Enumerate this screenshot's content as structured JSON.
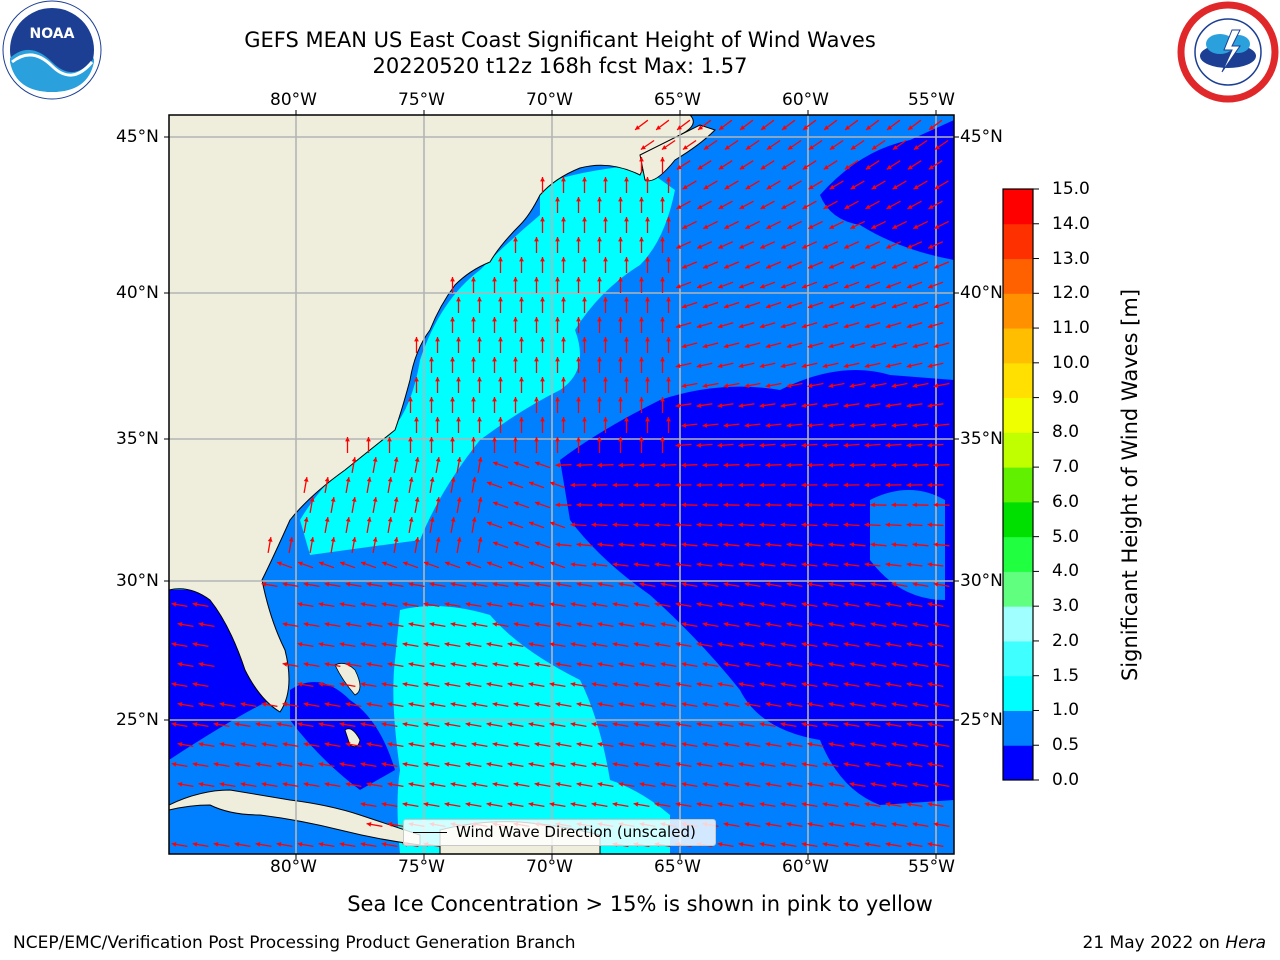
{
  "header": {
    "title_line1": "GEFS MEAN US East Coast Significant Height of Wind Waves",
    "title_line2": "20220520 t12z 168h fcst   Max: 1.57",
    "left_logo": {
      "icon": "noaa-logo",
      "text": "NOAA"
    },
    "right_logo": {
      "icon": "nws-logo"
    }
  },
  "map": {
    "lon_labels": [
      "80°W",
      "75°W",
      "70°W",
      "65°W",
      "60°W",
      "55°W"
    ],
    "lat_labels": [
      "45°N",
      "40°N",
      "35°N",
      "30°N",
      "25°N"
    ],
    "land_color": "#efeddc",
    "gridline_color": "#b4b4b4",
    "vector_color": "#ff0000",
    "legend_label": "Wind Wave Direction (unscaled)"
  },
  "colorbar": {
    "label": "Significant Height of Wind Waves [m]",
    "ticks": [
      "0.0",
      "0.5",
      "1.0",
      "1.5",
      "2.0",
      "3.0",
      "4.0",
      "5.0",
      "6.0",
      "7.0",
      "8.0",
      "9.0",
      "10.0",
      "11.0",
      "12.0",
      "13.0",
      "14.0",
      "15.0"
    ],
    "colors": [
      "#0000ff",
      "#0080ff",
      "#00ffff",
      "#40ffff",
      "#a0ffff",
      "#60ff80",
      "#20ff40",
      "#00e000",
      "#60f000",
      "#c0ff00",
      "#f0ff00",
      "#ffe000",
      "#ffbf00",
      "#ff9000",
      "#ff6000",
      "#ff3000",
      "#ff0000"
    ]
  },
  "footer": {
    "sea_ice_note": "Sea Ice Concentration > 15% is shown in pink to yellow",
    "left": "NCEP/EMC/Verification Post Processing Product Generation Branch",
    "right_date": "21 May 2022 on",
    "right_machine": "Hera"
  }
}
